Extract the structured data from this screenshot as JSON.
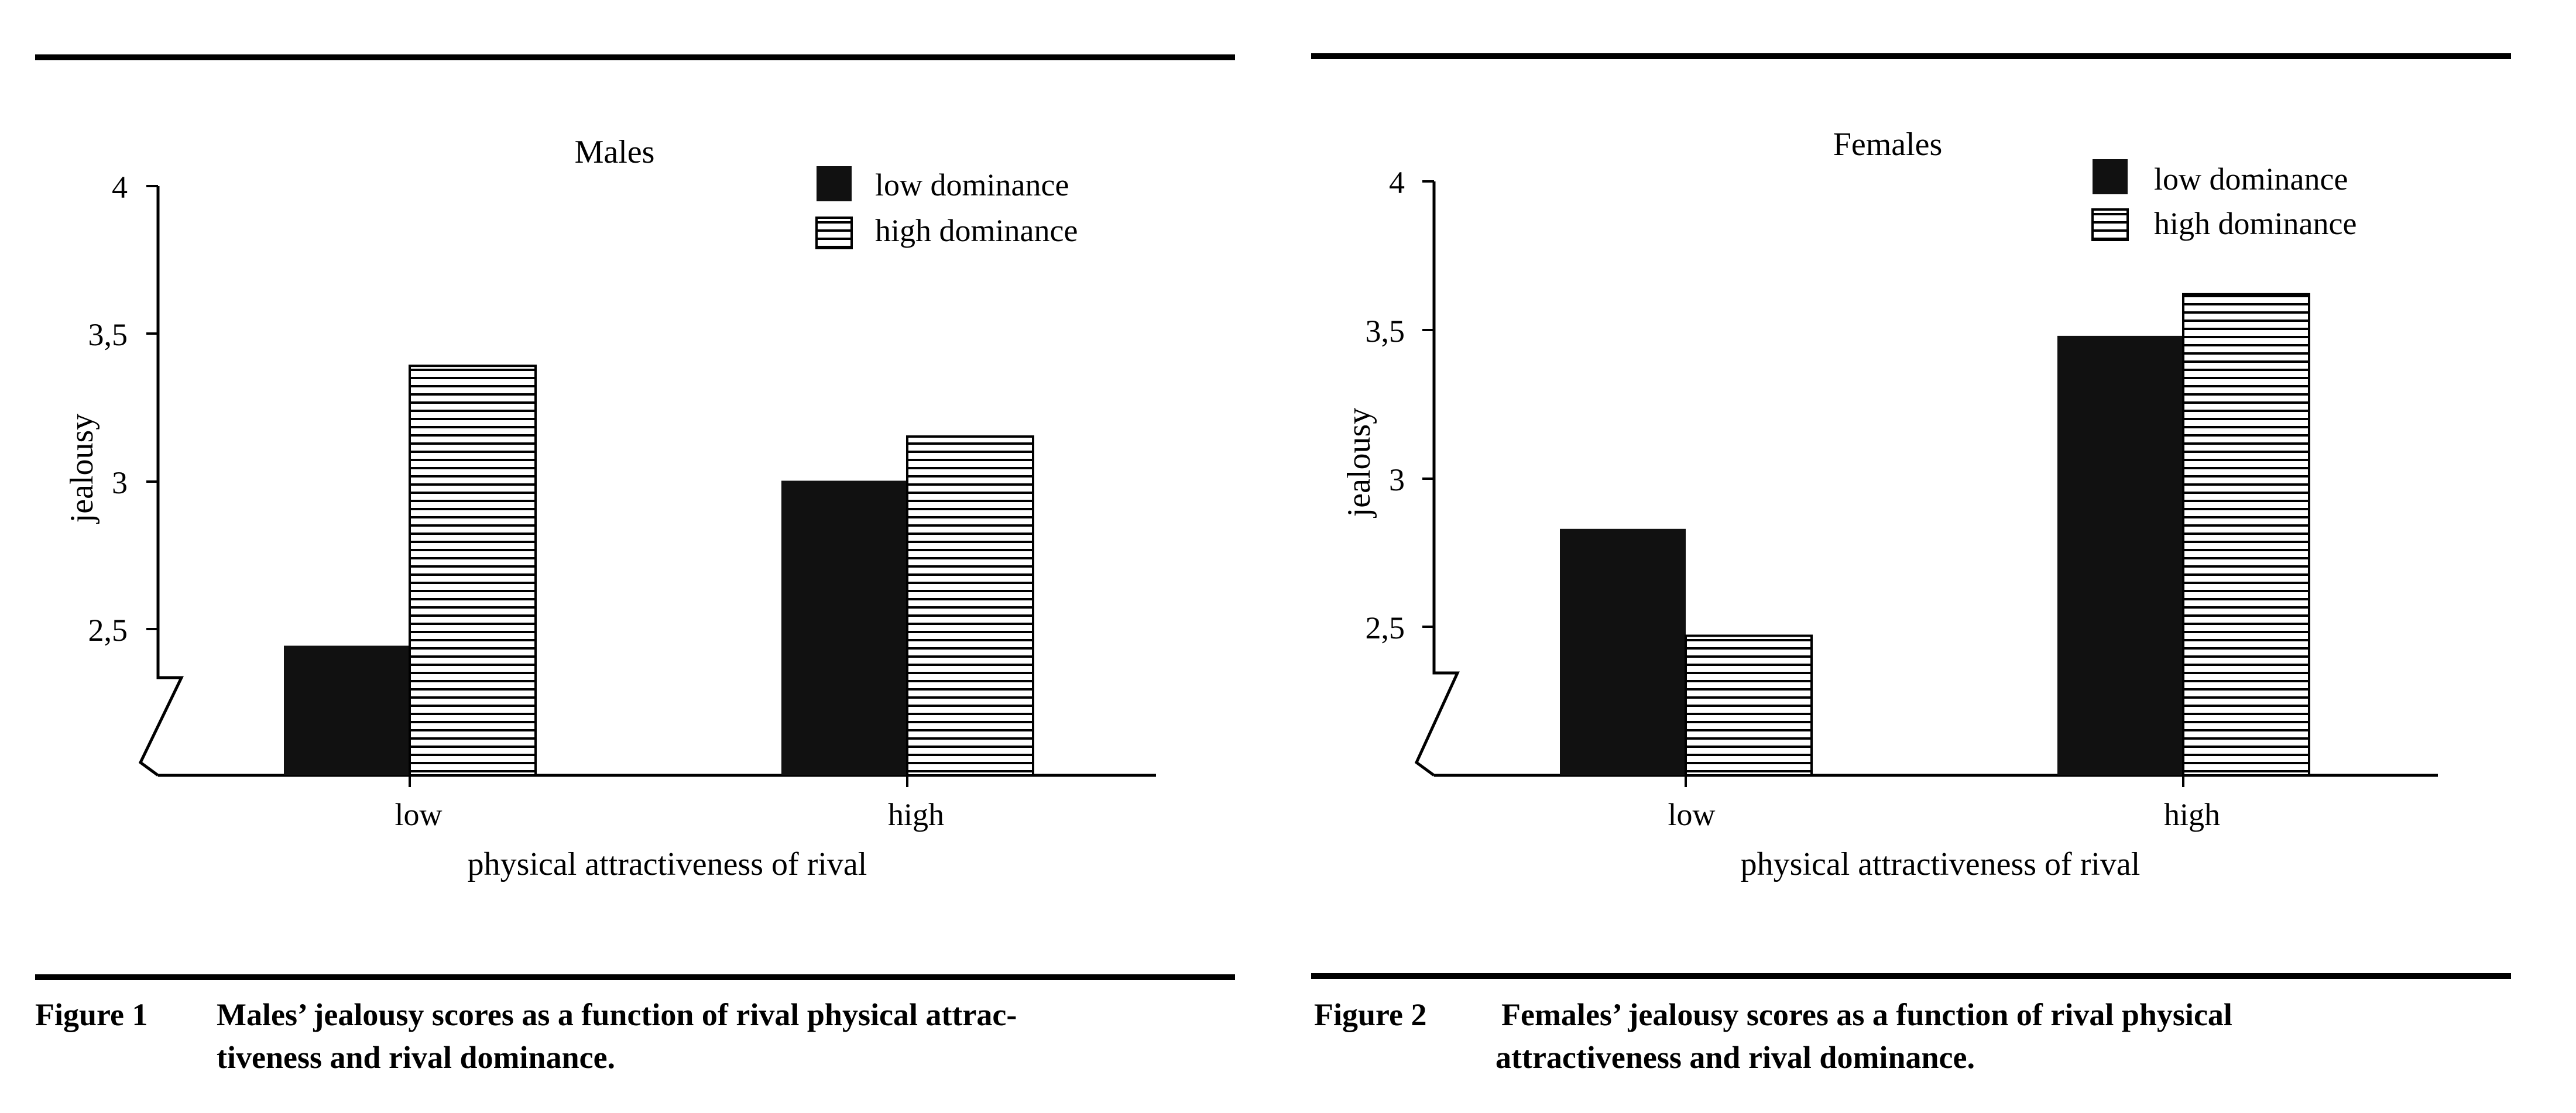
{
  "chart_data": [
    {
      "type": "bar",
      "title": "Males",
      "xlabel": "physical attractiveness of rival",
      "ylabel": "jealousy",
      "ylim": [
        2,
        4
      ],
      "axis_break": true,
      "yticks": [
        "2,5",
        "3",
        "3,5",
        "4"
      ],
      "categories": [
        "low",
        "high"
      ],
      "legend_position": "top-right",
      "series": [
        {
          "name": "low dominance",
          "pattern": "solid-black",
          "values": [
            2.44,
            3.0
          ]
        },
        {
          "name": "high dominance",
          "pattern": "horizontal-stripes",
          "values": [
            3.39,
            3.15
          ]
        }
      ],
      "figure_label": "Figure 1",
      "caption": "Males’ jealousy scores as a function of rival physical attractiveness and rival dominance.",
      "caption_line1": "Males’ jealousy scores as a function of rival physical attrac-",
      "caption_line2": "tiveness and rival dominance."
    },
    {
      "type": "bar",
      "title": "Females",
      "xlabel": "physical attractiveness of rival",
      "ylabel": "jealousy",
      "ylim": [
        2,
        4
      ],
      "axis_break": true,
      "yticks": [
        "2,5",
        "3",
        "3,5",
        "4"
      ],
      "categories": [
        "low",
        "high"
      ],
      "legend_position": "top-right",
      "series": [
        {
          "name": "low dominance",
          "pattern": "solid-black",
          "values": [
            2.83,
            3.48
          ]
        },
        {
          "name": "high dominance",
          "pattern": "horizontal-stripes",
          "values": [
            2.47,
            3.62
          ]
        }
      ],
      "figure_label": "Figure 2",
      "caption": "Females’ jealousy scores as a function of rival physical attractiveness and rival dominance.",
      "caption_line1": "Females’ jealousy scores as a function of rival physical",
      "caption_line2": "attractiveness and rival dominance."
    }
  ]
}
